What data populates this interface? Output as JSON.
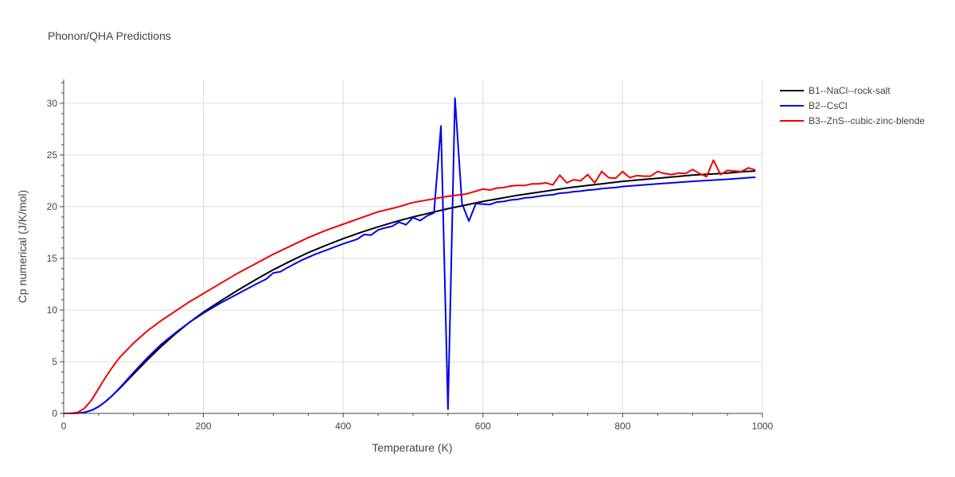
{
  "chart_data": {
    "type": "line",
    "title": "Phonon/QHA Predictions",
    "xlabel": "Temperature (K)",
    "ylabel": "Cp numerical (J/K/mol)",
    "xlim": [
      0,
      1000
    ],
    "ylim": [
      0,
      32.3
    ],
    "xticks": [
      0,
      200,
      400,
      600,
      800,
      1000
    ],
    "yticks": [
      0,
      5,
      10,
      15,
      20,
      25,
      30
    ],
    "grid": true,
    "legend_position": "top-right",
    "series": [
      {
        "name": "B1--NaCl--rock-salt",
        "color": "#000000",
        "x": [
          0,
          10,
          20,
          30,
          40,
          50,
          60,
          70,
          80,
          90,
          100,
          120,
          140,
          160,
          180,
          200,
          225,
          250,
          275,
          300,
          325,
          350,
          375,
          400,
          425,
          450,
          475,
          500,
          525,
          550,
          575,
          600,
          625,
          650,
          675,
          700,
          725,
          750,
          775,
          800,
          825,
          850,
          875,
          900,
          925,
          950,
          975,
          990
        ],
        "y": [
          0,
          0,
          0.02,
          0.1,
          0.3,
          0.65,
          1.15,
          1.75,
          2.4,
          3.1,
          3.8,
          5.2,
          6.5,
          7.7,
          8.8,
          9.8,
          10.9,
          11.95,
          12.95,
          13.9,
          14.75,
          15.55,
          16.25,
          16.9,
          17.5,
          18.05,
          18.55,
          19.0,
          19.4,
          19.8,
          20.15,
          20.5,
          20.8,
          21.1,
          21.35,
          21.6,
          21.85,
          22.05,
          22.25,
          22.45,
          22.6,
          22.75,
          22.9,
          23.05,
          23.15,
          23.25,
          23.4,
          23.45
        ]
      },
      {
        "name": "B2--CsCl",
        "color": "#0000ee",
        "x": [
          0,
          10,
          20,
          30,
          40,
          50,
          60,
          70,
          80,
          90,
          100,
          120,
          140,
          160,
          180,
          200,
          225,
          250,
          275,
          290,
          300,
          310,
          320,
          340,
          360,
          380,
          400,
          420,
          430,
          440,
          450,
          460,
          470,
          480,
          490,
          500,
          510,
          520,
          530,
          540,
          550,
          560,
          570,
          580,
          590,
          600,
          610,
          620,
          630,
          640,
          650,
          660,
          670,
          680,
          690,
          700,
          710,
          720,
          730,
          740,
          750,
          760,
          770,
          780,
          790,
          800,
          850,
          900,
          950,
          990
        ],
        "y": [
          0,
          0,
          0.02,
          0.1,
          0.3,
          0.65,
          1.15,
          1.75,
          2.45,
          3.2,
          3.95,
          5.4,
          6.7,
          7.8,
          8.8,
          9.7,
          10.7,
          11.6,
          12.5,
          13.0,
          13.6,
          13.7,
          14.1,
          14.8,
          15.4,
          15.9,
          16.4,
          16.85,
          17.3,
          17.25,
          17.75,
          17.95,
          18.1,
          18.5,
          18.25,
          18.95,
          18.65,
          19.1,
          19.4,
          27.8,
          0.4,
          30.5,
          20.3,
          18.6,
          20.3,
          20.25,
          20.2,
          20.45,
          20.5,
          20.65,
          20.7,
          20.85,
          20.9,
          21.0,
          21.1,
          21.15,
          21.3,
          21.35,
          21.45,
          21.5,
          21.6,
          21.65,
          21.75,
          21.8,
          21.85,
          21.95,
          22.2,
          22.45,
          22.65,
          22.85
        ]
      },
      {
        "name": "B3--ZnS--cubic-zinc-blende",
        "color": "#ee0000",
        "x": [
          0,
          10,
          20,
          30,
          40,
          50,
          60,
          70,
          80,
          90,
          100,
          120,
          140,
          160,
          180,
          200,
          225,
          250,
          275,
          300,
          325,
          350,
          375,
          400,
          425,
          450,
          475,
          500,
          525,
          550,
          575,
          590,
          600,
          610,
          620,
          630,
          640,
          650,
          660,
          670,
          680,
          690,
          700,
          710,
          720,
          730,
          740,
          750,
          760,
          770,
          780,
          790,
          800,
          810,
          820,
          830,
          840,
          850,
          860,
          870,
          880,
          890,
          900,
          910,
          920,
          930,
          940,
          950,
          960,
          970,
          980,
          990
        ],
        "y": [
          0,
          0.02,
          0.1,
          0.5,
          1.3,
          2.4,
          3.5,
          4.5,
          5.4,
          6.1,
          6.8,
          8.0,
          9.0,
          9.9,
          10.8,
          11.6,
          12.6,
          13.6,
          14.5,
          15.4,
          16.2,
          17.0,
          17.7,
          18.3,
          18.9,
          19.5,
          19.9,
          20.4,
          20.7,
          21.0,
          21.2,
          21.5,
          21.7,
          21.6,
          21.8,
          21.85,
          22.0,
          22.05,
          22.05,
          22.2,
          22.2,
          22.3,
          22.1,
          23.05,
          22.3,
          22.6,
          22.5,
          23.1,
          22.3,
          23.4,
          22.8,
          22.75,
          23.4,
          22.8,
          23.0,
          22.95,
          22.95,
          23.4,
          23.2,
          23.1,
          23.25,
          23.2,
          23.6,
          23.2,
          22.9,
          24.5,
          23.1,
          23.5,
          23.45,
          23.4,
          23.75,
          23.55
        ]
      }
    ]
  }
}
